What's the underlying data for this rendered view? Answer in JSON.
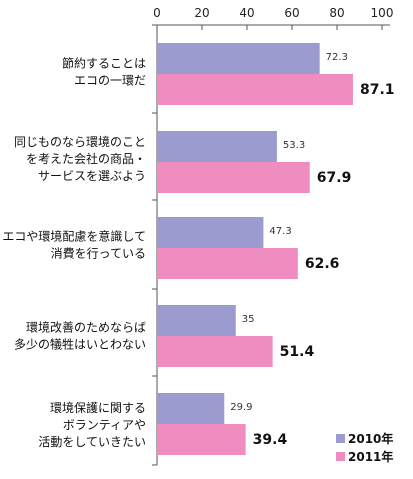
{
  "chart_data": {
    "type": "bar",
    "orientation": "horizontal",
    "xlim": [
      0,
      100
    ],
    "xticks": [
      "0",
      "20",
      "40",
      "60",
      "80",
      "100"
    ],
    "categories": [
      [
        "節約することは",
        "エコの一環だ"
      ],
      [
        "同じものなら環境のこと",
        "を考えた会社の商品・",
        "サービスを選ぶよう"
      ],
      [
        "エコや環境配慮を意識して",
        "消費を行っている"
      ],
      [
        "環境改善のためならば",
        "多少の犠牲はいとわない"
      ],
      [
        "環境保護に関する",
        "ボランティアや",
        "活動をしていきたい"
      ]
    ],
    "series": [
      {
        "name": "2010年",
        "values": [
          72.3,
          53.3,
          47.3,
          35,
          29.9
        ],
        "labels": [
          "72.3",
          "53.3",
          "47.3",
          "35",
          "29.9"
        ],
        "color": "#9b9bd0"
      },
      {
        "name": "2011年",
        "values": [
          87.1,
          67.9,
          62.6,
          51.4,
          39.4
        ],
        "labels": [
          "87.1",
          "67.9",
          "62.6",
          "51.4",
          "39.4"
        ],
        "color": "#f08dc0"
      }
    ],
    "grid": false,
    "legend_position": "bottom-right"
  }
}
